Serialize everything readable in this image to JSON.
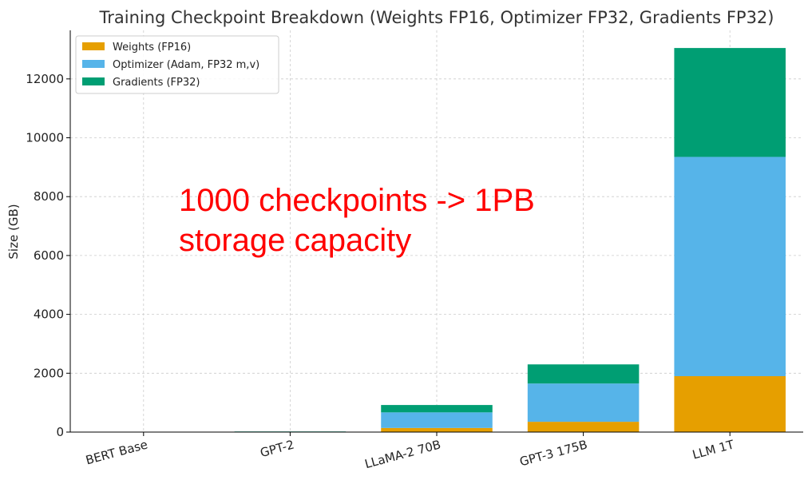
{
  "chart_data": {
    "type": "bar",
    "stacked": true,
    "title": "Training Checkpoint Breakdown (Weights FP16, Optimizer FP32, Gradients FP32)",
    "xlabel": "",
    "ylabel": "Size (GB)",
    "ylim": [
      0,
      13650
    ],
    "yticks": [
      0,
      2000,
      4000,
      6000,
      8000,
      10000,
      12000
    ],
    "grid": true,
    "legend_position": "top-left",
    "categories": [
      "BERT Base",
      "GPT-2",
      "LLaMA-2 70B",
      "GPT-3 175B",
      "LLM 1T"
    ],
    "series": [
      {
        "name": "Weights (FP16)",
        "color": "#E69F00",
        "values": [
          0.2,
          3,
          140,
          350,
          1900
        ]
      },
      {
        "name": "Optimizer (Adam, FP32 m,v)",
        "color": "#56B4E9",
        "values": [
          0.9,
          12,
          530,
          1300,
          7450
        ]
      },
      {
        "name": "Gradients (FP32)",
        "color": "#009E73",
        "values": [
          0.4,
          6,
          250,
          650,
          3700
        ]
      }
    ],
    "annotations": [
      {
        "lines": [
          "1000 checkpoints -> 1PB",
          "storage capacity"
        ],
        "color": "#ff0000"
      }
    ]
  }
}
